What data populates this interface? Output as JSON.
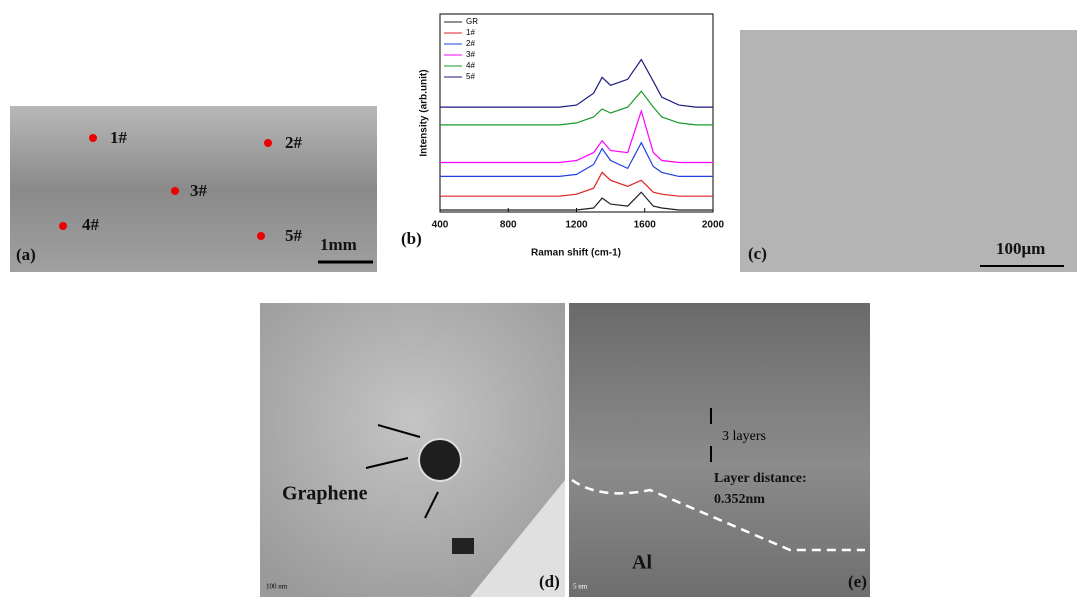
{
  "panels": {
    "a": {
      "label": "(a)",
      "points": [
        "1#",
        "2#",
        "3#",
        "4#",
        "5#"
      ],
      "scale": "1mm"
    },
    "c": {
      "label": "(c)",
      "scale": "100μm"
    },
    "d": {
      "label": "(d)",
      "text": "Graphene",
      "scale": "100 nm"
    },
    "e": {
      "label": "(e)",
      "layers": "3 layers",
      "distance_label": "Layer distance:",
      "distance": "0.352nm",
      "material": "Al",
      "scale": "5 nm"
    }
  },
  "chart_data": {
    "type": "line",
    "label": "(b)",
    "xlabel": "Raman shift (cm-1)",
    "ylabel": "Intensity (arb.unit)",
    "x": [
      400,
      500,
      600,
      700,
      800,
      900,
      1000,
      1100,
      1200,
      1300,
      1350,
      1400,
      1500,
      1580,
      1650,
      1700,
      1800,
      1900,
      2000
    ],
    "xlim": [
      400,
      2000
    ],
    "xticks": [
      400,
      800,
      1200,
      1600,
      2000
    ],
    "ylim": [
      0,
      10
    ],
    "legend": "upper left",
    "series": [
      {
        "name": "GR",
        "color": "#222222",
        "values": [
          0.1,
          0.1,
          0.1,
          0.1,
          0.1,
          0.1,
          0.1,
          0.1,
          0.1,
          0.2,
          0.7,
          0.4,
          0.3,
          1.0,
          0.3,
          0.2,
          0.1,
          0.1,
          0.1
        ]
      },
      {
        "name": "1#",
        "color": "#e02020",
        "values": [
          0.8,
          0.8,
          0.8,
          0.8,
          0.8,
          0.8,
          0.8,
          0.8,
          0.9,
          1.2,
          2.0,
          1.6,
          1.3,
          1.6,
          1.0,
          0.9,
          0.8,
          0.8,
          0.8
        ]
      },
      {
        "name": "2#",
        "color": "#2040e0",
        "values": [
          1.8,
          1.8,
          1.8,
          1.8,
          1.8,
          1.8,
          1.8,
          1.8,
          1.9,
          2.4,
          3.2,
          2.6,
          2.2,
          3.5,
          2.3,
          2.0,
          1.8,
          1.8,
          1.8
        ]
      },
      {
        "name": "3#",
        "color": "#ff00ff",
        "values": [
          2.5,
          2.5,
          2.5,
          2.5,
          2.5,
          2.5,
          2.5,
          2.5,
          2.6,
          3.0,
          3.6,
          3.1,
          3.0,
          5.1,
          3.0,
          2.6,
          2.5,
          2.5,
          2.5
        ]
      },
      {
        "name": "4#",
        "color": "#1a9a2a",
        "values": [
          4.4,
          4.4,
          4.4,
          4.4,
          4.4,
          4.4,
          4.4,
          4.4,
          4.5,
          4.8,
          5.2,
          5.0,
          5.3,
          6.1,
          5.3,
          4.8,
          4.5,
          4.4,
          4.4
        ]
      },
      {
        "name": "5#",
        "color": "#1a1a80",
        "values": [
          5.3,
          5.3,
          5.3,
          5.3,
          5.3,
          5.3,
          5.3,
          5.3,
          5.4,
          6.0,
          6.8,
          6.4,
          6.7,
          7.7,
          6.6,
          5.8,
          5.4,
          5.3,
          5.3
        ]
      }
    ]
  }
}
